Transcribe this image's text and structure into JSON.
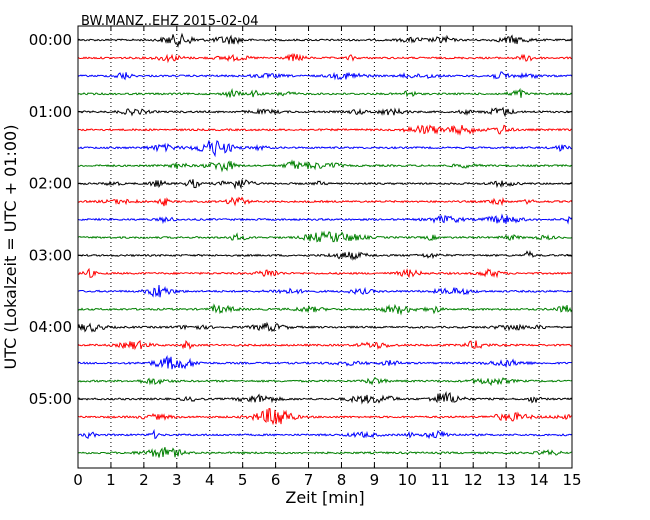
{
  "chart_data": {
    "type": "line",
    "title": "BW.MANZ..EHZ 2015-02-04",
    "xlabel": "Zeit  [min]",
    "ylabel": "UTC (Lokalzeit = UTC + 01:00)",
    "xlim": [
      0,
      15
    ],
    "x_ticks": [
      0,
      1,
      2,
      3,
      4,
      5,
      6,
      7,
      8,
      9,
      10,
      11,
      12,
      13,
      14,
      15
    ],
    "x_tick_labels": [
      "0",
      "1",
      "2",
      "3",
      "4",
      "5",
      "6",
      "7",
      "8",
      "9",
      "10",
      "11",
      "12",
      "13",
      "14",
      "15"
    ],
    "y_tick_labels": [
      "00:00",
      "01:00",
      "02:00",
      "03:00",
      "04:00",
      "05:00"
    ],
    "trace_count": 24,
    "trace_minutes": 15,
    "grid": "x-dotted",
    "colors": [
      "#000000",
      "#ff0000",
      "#0000ff",
      "#008000"
    ]
  }
}
